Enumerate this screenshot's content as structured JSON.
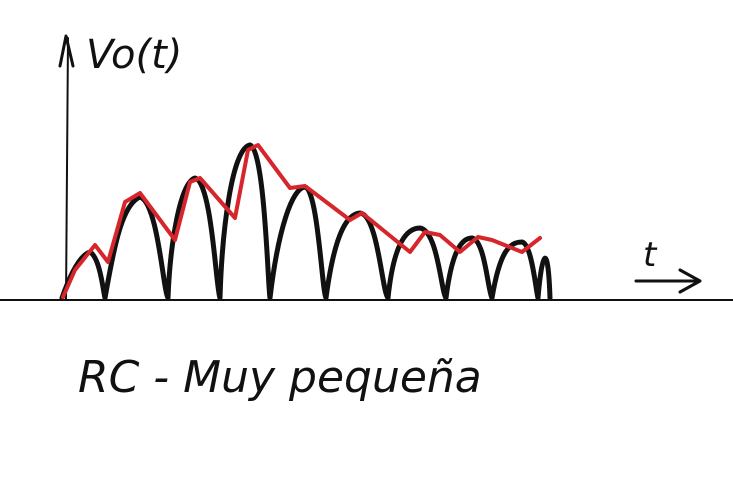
{
  "diagram": {
    "y_axis_label": "Vo(t)",
    "x_axis_label": "t",
    "caption": "RC - Muy pequeña",
    "colors": {
      "ink": "#111111",
      "envelope": "#d7262b",
      "background": "#ffffff"
    },
    "signal": {
      "type": "rectified sinusoid",
      "peaks_relative": [
        0.4,
        0.75,
        0.92,
        1.0,
        0.82,
        0.64,
        0.5,
        0.45,
        0.4
      ]
    },
    "envelope": {
      "label": "",
      "description_visible": false
    }
  }
}
